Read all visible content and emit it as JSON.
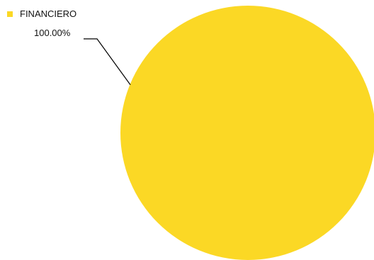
{
  "chart_data": {
    "type": "pie",
    "slices": [
      {
        "name": "FINANCIERO",
        "value": 100.0,
        "label": "100.00%",
        "color": "#FBD825"
      }
    ],
    "legend": {
      "placement": "top-left"
    },
    "title": ""
  }
}
